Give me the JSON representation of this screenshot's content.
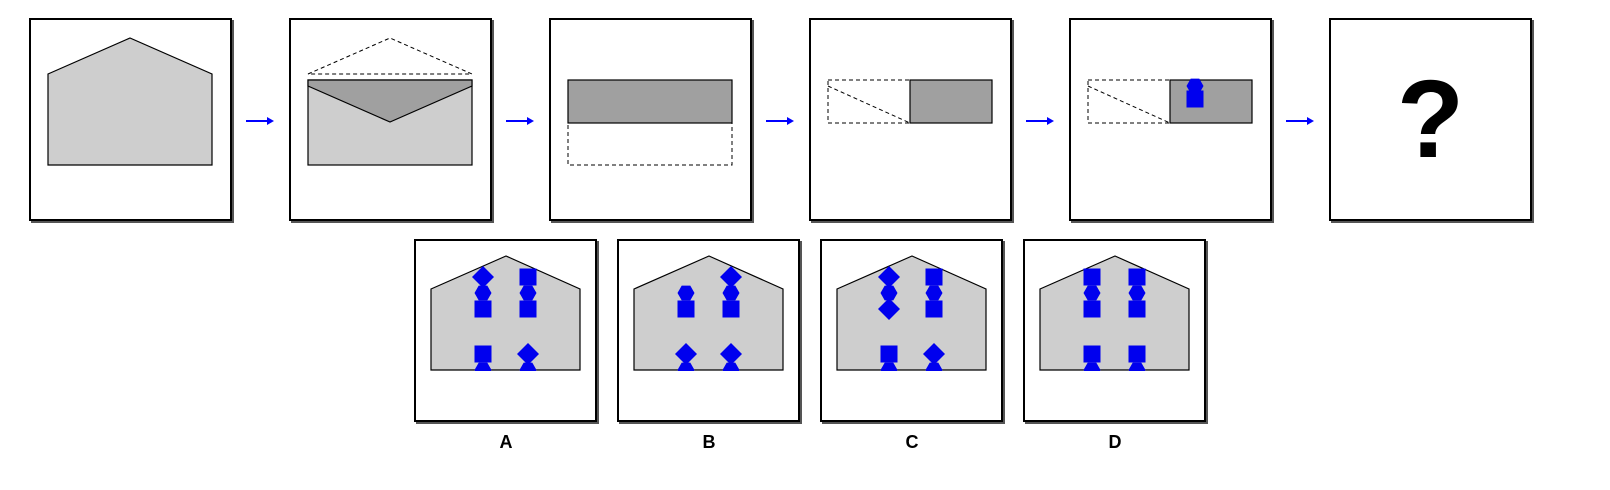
{
  "question_mark": "?",
  "options": [
    {
      "label": "A"
    },
    {
      "label": "B"
    },
    {
      "label": "C"
    },
    {
      "label": "D"
    }
  ],
  "colors": {
    "light_fill": "#cecece",
    "dark_fill": "#a0a0a0",
    "shape_blue": "#0000ee",
    "arrow_blue": "#0000ff"
  }
}
